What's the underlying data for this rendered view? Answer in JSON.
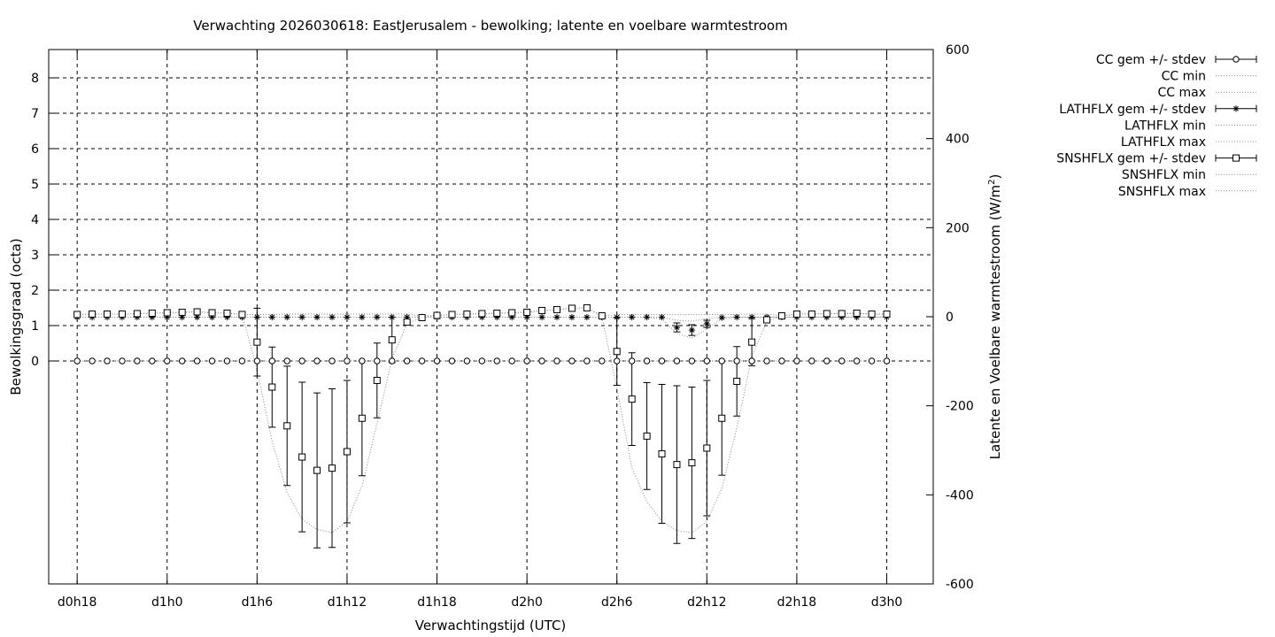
{
  "chart_data": {
    "type": "line",
    "title": "Verwachting 2026030618: EastJerusalem - bewolking; latente en voelbare warmtestroom",
    "xlabel": "Verwachtingstijd (UTC)",
    "ylabel": "Bewolkingsgraad (octa)",
    "y2label_main": "Latente en Voelbare warmtestroom (W/m",
    "y2label_sup": "2",
    "y2label_end": ")",
    "x_ticks": [
      {
        "label": "d0h18",
        "hour": 18
      },
      {
        "label": "d1h0",
        "hour": 24
      },
      {
        "label": "d1h6",
        "hour": 30
      },
      {
        "label": "d1h12",
        "hour": 36
      },
      {
        "label": "d1h18",
        "hour": 42
      },
      {
        "label": "d2h0",
        "hour": 48
      },
      {
        "label": "d2h6",
        "hour": 54
      },
      {
        "label": "d2h12",
        "hour": 60
      },
      {
        "label": "d2h18",
        "hour": 66
      },
      {
        "label": "d3h0",
        "hour": 72
      }
    ],
    "xlim": [
      16.1,
      75.1
    ],
    "ylim": [
      -6.3,
      8.8
    ],
    "y_ticks": [
      0,
      1,
      2,
      3,
      4,
      5,
      6,
      7,
      8
    ],
    "y2lim": [
      -600,
      600
    ],
    "y2_ticks": [
      -600,
      -400,
      -200,
      0,
      200,
      400,
      600
    ],
    "grid": true,
    "legend_position": "outside-right",
    "legend": [
      {
        "label": "CC gem +/- stdev",
        "style": "errorbar",
        "marker": "circle"
      },
      {
        "label": "CC min",
        "style": "dotted"
      },
      {
        "label": "CC max",
        "style": "dotted"
      },
      {
        "label": "LATHFLX gem +/- stdev",
        "style": "errorbar",
        "marker": "star"
      },
      {
        "label": "LATHFLX min",
        "style": "dotted"
      },
      {
        "label": "LATHFLX max",
        "style": "dotted"
      },
      {
        "label": "SNSHFLX gem +/- stdev",
        "style": "errorbar",
        "marker": "square"
      },
      {
        "label": "SNSHFLX min",
        "style": "dotted"
      },
      {
        "label": "SNSHFLX max",
        "style": "dotted"
      }
    ],
    "x_hours": [
      18,
      19,
      20,
      21,
      22,
      23,
      24,
      25,
      26,
      27,
      28,
      29,
      30,
      31,
      32,
      33,
      34,
      35,
      36,
      37,
      38,
      39,
      40,
      41,
      42,
      43,
      44,
      45,
      46,
      47,
      48,
      49,
      50,
      51,
      52,
      53,
      54,
      55,
      56,
      57,
      58,
      59,
      60,
      61,
      62,
      63,
      64,
      65,
      66,
      67,
      68,
      69,
      70,
      71,
      72
    ],
    "series": [
      {
        "name": "CC",
        "axis": "y1",
        "marker": "circle",
        "mean": [
          0,
          0,
          0,
          0,
          0,
          0,
          0,
          0,
          0,
          0,
          0,
          0,
          0,
          0,
          0,
          0,
          0,
          0,
          0,
          0,
          0,
          0,
          0,
          0,
          0,
          0,
          0,
          0,
          0,
          0,
          0,
          0,
          0,
          0,
          0,
          0,
          0,
          0,
          0,
          0,
          0,
          0,
          0,
          0,
          0,
          0,
          0,
          0,
          0,
          0,
          0,
          0,
          0,
          0,
          0
        ],
        "stdev": [
          0,
          0,
          0,
          0,
          0,
          0,
          0,
          0,
          0,
          0,
          0,
          0,
          0,
          0,
          0,
          0,
          0,
          0,
          0,
          0,
          0,
          0,
          0,
          0,
          0,
          0,
          0,
          0,
          0,
          0,
          0,
          0,
          0,
          0,
          0,
          0,
          0,
          0,
          0,
          0,
          0,
          0,
          0,
          0,
          0,
          0,
          0,
          0,
          0,
          0,
          0,
          0,
          0,
          0,
          0
        ],
        "min": [
          0,
          0,
          0,
          0,
          0,
          0,
          0,
          0,
          0,
          0,
          0,
          0,
          0,
          0,
          0,
          0,
          0,
          0,
          0,
          0,
          0,
          0,
          0,
          0,
          0,
          0,
          0,
          0,
          0,
          0,
          0,
          0,
          0,
          0,
          0,
          0,
          0,
          0,
          0,
          0,
          0,
          0,
          0,
          0,
          0,
          0,
          0,
          0,
          0,
          0,
          0,
          0,
          0,
          0,
          0
        ],
        "max": [
          0,
          0,
          0,
          0,
          0,
          0,
          0,
          0,
          0,
          0,
          0,
          0,
          0,
          0,
          0,
          0,
          0,
          0,
          0,
          0,
          0,
          0,
          0,
          0,
          0,
          0,
          0,
          0,
          0,
          0,
          0,
          0,
          0,
          0,
          0,
          0,
          0,
          0,
          0,
          0,
          0,
          0,
          0,
          0,
          0,
          0,
          0,
          0,
          0,
          0,
          0,
          0,
          0,
          0,
          0
        ]
      },
      {
        "name": "LATHFLX",
        "axis": "y2",
        "marker": "star",
        "mean": [
          -1,
          -1,
          -1,
          -1,
          -1,
          -1,
          -1,
          -1,
          -1,
          -1,
          -1,
          -1,
          -1,
          -1,
          -1,
          -1,
          -1,
          -1,
          -1,
          -1,
          -1,
          -1,
          -1,
          -1,
          -1,
          -1,
          -1,
          -1,
          -1,
          -1,
          -1,
          -1,
          -1,
          -1,
          -1,
          -1,
          -1,
          -1,
          -1,
          -1,
          -24,
          -30,
          -16,
          -2,
          -1,
          -1,
          -1,
          -1,
          -1,
          -1,
          -1,
          -1,
          -1,
          -1,
          -1
        ],
        "stdev": [
          0,
          0,
          0,
          0,
          0,
          0,
          0,
          0,
          0,
          0,
          0,
          0,
          0,
          0,
          0,
          0,
          0,
          0,
          0,
          0,
          0,
          0,
          0,
          0,
          0,
          0,
          0,
          0,
          0,
          0,
          0,
          0,
          0,
          0,
          0,
          0,
          0,
          0,
          0,
          0,
          10,
          12,
          8,
          0,
          0,
          0,
          0,
          0,
          0,
          0,
          0,
          0,
          0,
          0,
          0
        ],
        "min": [
          -1,
          -1,
          -1,
          -1,
          -1,
          -1,
          -1,
          -1,
          -1,
          -1,
          -1,
          -1,
          -1,
          -1,
          -1,
          -1,
          -1,
          -1,
          -1,
          -1,
          -1,
          -1,
          -1,
          -1,
          -1,
          -1,
          -1,
          -1,
          -1,
          -1,
          -1,
          -1,
          -1,
          -1,
          -1,
          -1,
          -1,
          -1,
          -1,
          -5,
          -38,
          -48,
          -28,
          -4,
          -1,
          -1,
          -1,
          -1,
          -1,
          -1,
          -1,
          -1,
          -1,
          -1,
          -1
        ],
        "max": [
          -1,
          -1,
          -1,
          -1,
          -1,
          -1,
          -1,
          -1,
          -1,
          -1,
          -1,
          -1,
          -1,
          -1,
          -1,
          -1,
          -1,
          -1,
          -1,
          -1,
          -1,
          -1,
          -1,
          -1,
          -1,
          -1,
          -1,
          -1,
          -1,
          -1,
          -1,
          -1,
          -1,
          -1,
          -1,
          -1,
          -1,
          -1,
          -1,
          -1,
          -8,
          -10,
          -4,
          -1,
          -1,
          -1,
          -1,
          -1,
          -1,
          -1,
          -1,
          -1,
          -1,
          -1,
          -1
        ]
      },
      {
        "name": "SNSHFLX",
        "axis": "y2",
        "marker": "square",
        "mean": [
          5,
          6,
          6,
          6,
          7,
          8,
          9,
          10,
          11,
          9,
          8,
          5,
          -57,
          -158,
          -245,
          -315,
          -345,
          -340,
          -303,
          -228,
          -143,
          -52,
          -12,
          -2,
          3,
          5,
          6,
          7,
          8,
          9,
          10,
          14,
          16,
          19,
          20,
          2,
          -78,
          -185,
          -268,
          -308,
          -332,
          -328,
          -295,
          -228,
          -145,
          -57,
          -7,
          2,
          6,
          6,
          7,
          7,
          8,
          6,
          6
        ],
        "stdev": [
          0,
          0,
          0,
          0,
          0,
          0,
          0,
          0,
          0,
          0,
          0,
          0,
          76,
          90,
          134,
          168,
          174,
          178,
          160,
          129,
          84,
          51,
          0,
          0,
          0,
          0,
          0,
          0,
          0,
          0,
          0,
          0,
          0,
          0,
          0,
          0,
          76,
          104,
          120,
          156,
          177,
          170,
          152,
          128,
          78,
          53,
          0,
          0,
          0,
          0,
          0,
          0,
          0,
          0,
          0
        ],
        "min": [
          5,
          6,
          6,
          6,
          7,
          8,
          9,
          10,
          11,
          9,
          8,
          5,
          -120,
          -280,
          -395,
          -455,
          -478,
          -485,
          -460,
          -380,
          -240,
          -95,
          -15,
          -2,
          3,
          5,
          6,
          7,
          8,
          9,
          10,
          14,
          16,
          19,
          20,
          0,
          -160,
          -340,
          -415,
          -460,
          -480,
          -485,
          -460,
          -385,
          -250,
          -90,
          -10,
          2,
          6,
          6,
          7,
          7,
          8,
          6,
          6
        ],
        "max": [
          5,
          6,
          6,
          6,
          7,
          8,
          9,
          10,
          11,
          9,
          8,
          5,
          5,
          5,
          6,
          6,
          6,
          6,
          6,
          6,
          6,
          6,
          6,
          2,
          3,
          5,
          6,
          7,
          8,
          9,
          10,
          14,
          16,
          19,
          20,
          2,
          5,
          5,
          5,
          5,
          5,
          5,
          5,
          5,
          5,
          6,
          6,
          2,
          6,
          6,
          7,
          7,
          8,
          6,
          6
        ]
      }
    ]
  }
}
